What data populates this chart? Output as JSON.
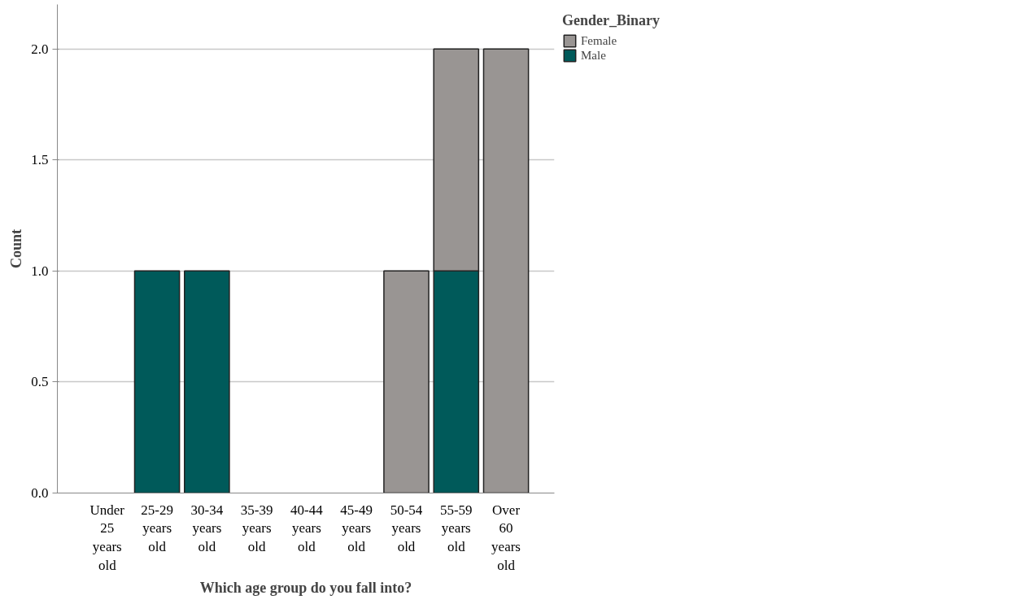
{
  "chart_data": {
    "type": "bar",
    "stacked": true,
    "xlabel": "Which age group do you fall into?",
    "ylabel": "Count",
    "legend_title": "Gender_Binary",
    "categories": [
      "Under 25 years old",
      "25-29 years old",
      "30-34 years old",
      "35-39 years old",
      "40-44 years old",
      "45-49 years old",
      "50-54 years old",
      "55-59 years old",
      "Over 60 years old"
    ],
    "series": [
      {
        "name": "Male",
        "color": "#005a5a",
        "values": [
          null,
          1,
          1,
          null,
          null,
          null,
          null,
          1,
          null
        ]
      },
      {
        "name": "Female",
        "color": "#999593",
        "values": [
          null,
          null,
          null,
          null,
          null,
          null,
          1,
          1,
          2
        ]
      }
    ],
    "ylim": [
      0,
      2.2
    ],
    "yticks": [
      {
        "value": 0,
        "label": "0.0"
      },
      {
        "value": 0.5,
        "label": "0.5"
      },
      {
        "value": 1,
        "label": "1.0"
      },
      {
        "value": 1.5,
        "label": "1.5"
      },
      {
        "value": 2,
        "label": "2.0"
      }
    ],
    "grid": "y",
    "legend": "top right"
  }
}
